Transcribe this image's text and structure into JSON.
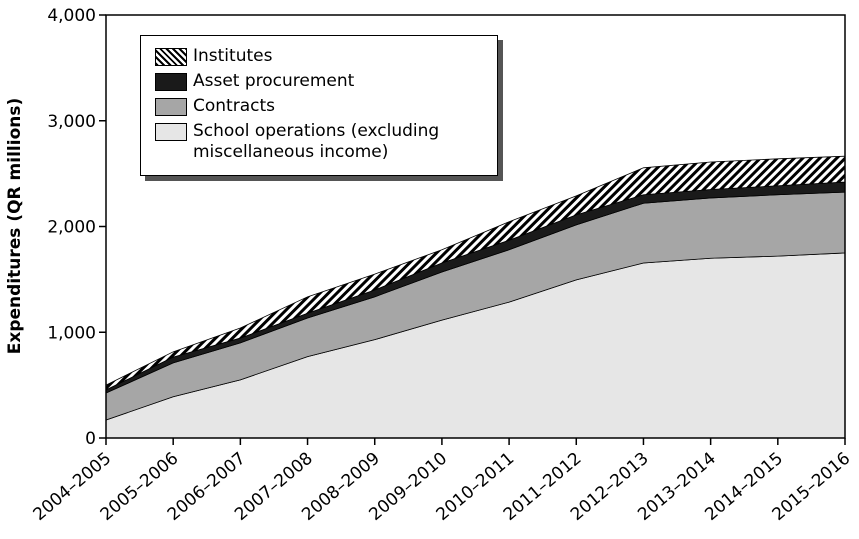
{
  "chart_data": {
    "type": "stacked_area",
    "y_label": "Expenditures (QR millions)",
    "categories": [
      "2004–2005",
      "2005–2006",
      "2006–2007",
      "2007–2008",
      "2008–2009",
      "2009–2010",
      "2010–2011",
      "2011–2012",
      "2012–2013",
      "2013–2014",
      "2014–2015",
      "2015–2016"
    ],
    "series": [
      {
        "name": "School operations (excluding miscellaneous income)",
        "color": "#e6e6e6",
        "values": [
          170,
          390,
          550,
          770,
          930,
          1115,
          1285,
          1495,
          1655,
          1700,
          1720,
          1750
        ]
      },
      {
        "name": "Contracts",
        "color": "#a6a6a6",
        "values": [
          255,
          320,
          350,
          365,
          405,
          455,
          495,
          520,
          565,
          570,
          580,
          575
        ]
      },
      {
        "name": "Asset procurement",
        "color": "#1a1a1a",
        "values": [
          30,
          55,
          45,
          45,
          65,
          85,
          90,
          95,
          80,
          80,
          85,
          95
        ]
      },
      {
        "name": "Institutes",
        "color": "#000000",
        "pattern": "hatch",
        "values": [
          45,
          50,
          95,
          155,
          150,
          125,
          175,
          180,
          255,
          260,
          255,
          245
        ]
      }
    ],
    "ylim": [
      0,
      4000
    ],
    "yticks": [
      0,
      {
        "value": 1000,
        "label": "1,000"
      },
      {
        "value": 2000,
        "label": "2,000"
      },
      {
        "value": 3000,
        "label": "3,000"
      },
      {
        "value": 4000,
        "label": "4,000"
      }
    ],
    "legend": "upper left",
    "legend_order": "reverse"
  }
}
